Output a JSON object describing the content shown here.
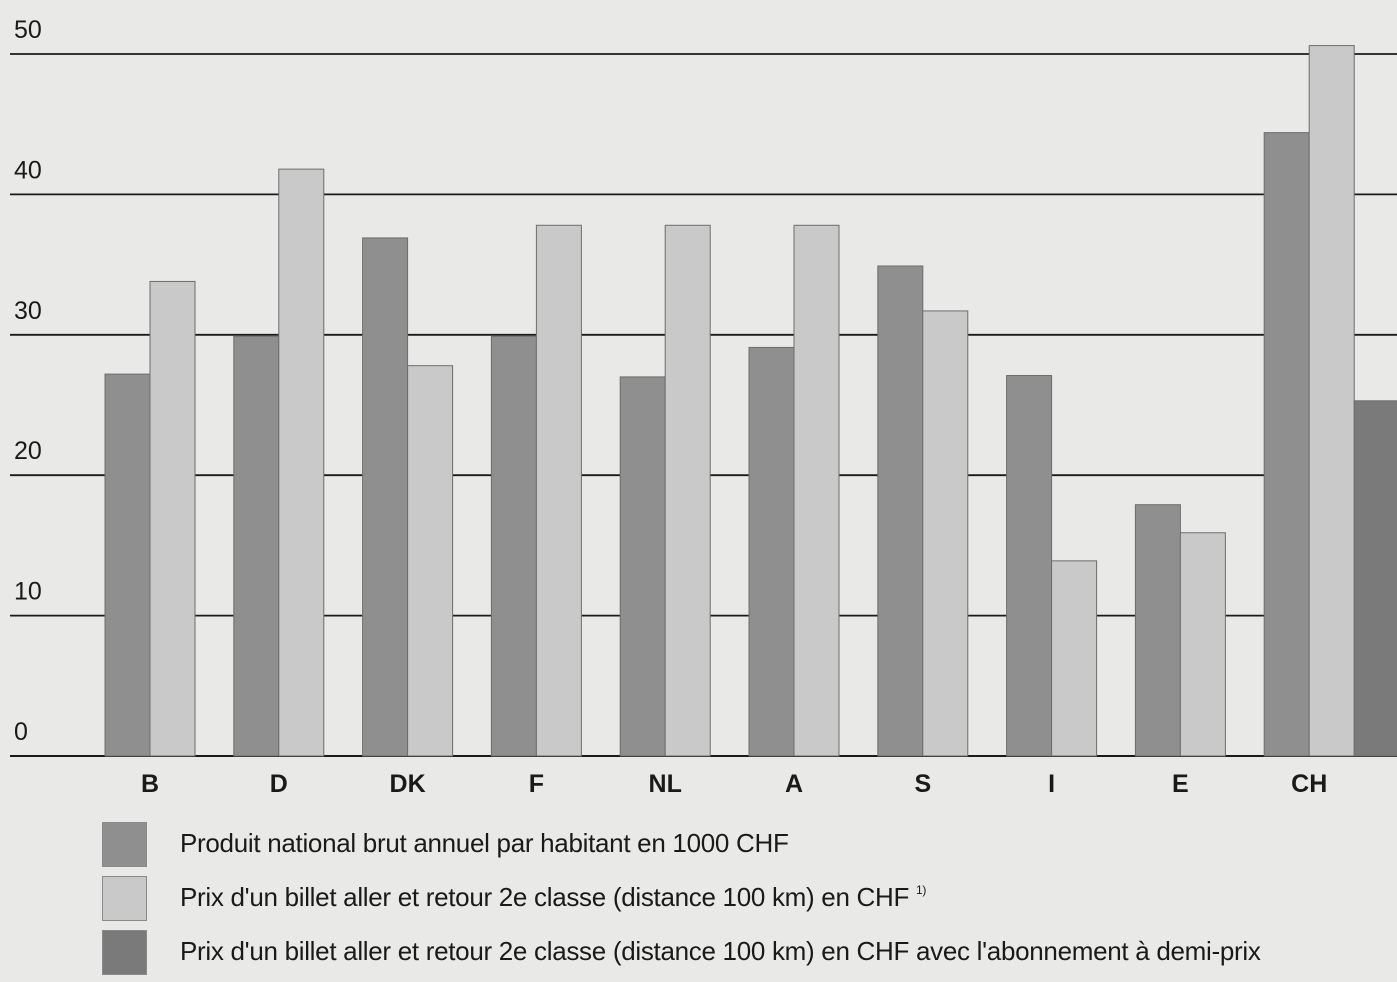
{
  "chart_data": {
    "type": "bar",
    "categories": [
      "B",
      "D",
      "DK",
      "F",
      "NL",
      "A",
      "S",
      "I",
      "E",
      "CH"
    ],
    "series": [
      {
        "name": "Produit national brut annuel par habitant en 1000 CHF",
        "color": "#8f8f8f",
        "values": [
          27.2,
          29.9,
          36.9,
          29.9,
          27.0,
          29.1,
          34.9,
          27.1,
          17.9,
          44.4
        ]
      },
      {
        "name": "Prix d'un billet aller et retour 2e classe (distance 100 km) en CHF",
        "footnote": "1)",
        "color": "#c9c9c9",
        "values": [
          33.8,
          41.8,
          27.8,
          37.8,
          37.8,
          37.8,
          31.7,
          13.9,
          15.9,
          50.6
        ]
      },
      {
        "name": "Prix d'un billet aller et retour 2e classe (distance 100 km) en CHF avec l'abonnement à demi-prix",
        "color": "#7a7a7a",
        "values": [
          null,
          null,
          null,
          null,
          null,
          null,
          null,
          null,
          null,
          25.3
        ]
      }
    ],
    "yticks": [
      0,
      10,
      20,
      30,
      40,
      50
    ],
    "ylim": [
      0,
      50
    ],
    "grid": true,
    "legend_position": "bottom"
  }
}
